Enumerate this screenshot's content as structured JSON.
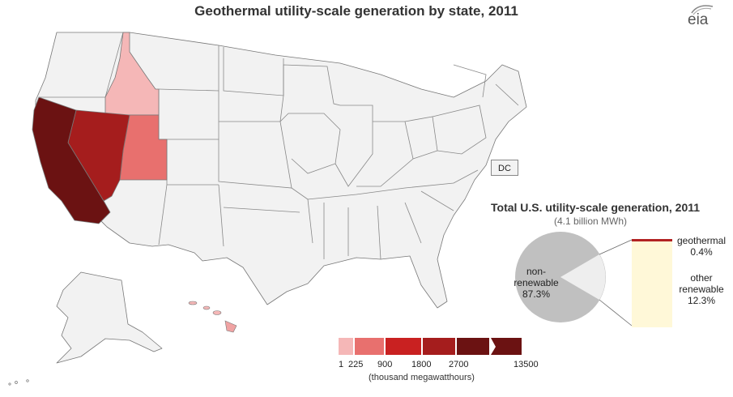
{
  "title": "Geothermal utility-scale generation by state, 2011",
  "logo": {
    "text": "eia",
    "icon": "eia-logo-icon"
  },
  "map": {
    "dc_label": "DC",
    "base_color": "#f2f2f2",
    "highlighted_states": [
      {
        "state": "California",
        "color": "#6b1212"
      },
      {
        "state": "Nevada",
        "color": "#a51d1d"
      },
      {
        "state": "Utah",
        "color": "#e8706e"
      },
      {
        "state": "Idaho",
        "color": "#f5b7b7"
      },
      {
        "state": "Hawaii",
        "color": "#f0a3a3"
      }
    ]
  },
  "legend": {
    "tick_labels": [
      "1",
      "225",
      "900",
      "1800",
      "2700",
      "13500"
    ],
    "unit": "(thousand megawatthours)",
    "colors": [
      "#f5b7b7",
      "#e8706e",
      "#c92121",
      "#a51d1d",
      "#6b1212",
      "#6b1212"
    ]
  },
  "inset": {
    "title": "Total U.S. utility-scale  generation, 2011",
    "subtitle": "(4.1 billion MWh)",
    "pie": [
      {
        "label_lines": [
          "non-",
          "renewable",
          "87.3%"
        ],
        "value": 87.3,
        "color": "#c0c0c0"
      },
      {
        "label_lines": [],
        "value": 12.7,
        "color": "#eeeeee"
      }
    ],
    "bar": [
      {
        "label_lines": [
          "geothermal",
          "0.4%"
        ],
        "value": 0.4,
        "color": "#b22222"
      },
      {
        "label_lines": [
          "other",
          "renewable",
          "12.3%"
        ],
        "value": 12.3,
        "color": "#fff8d8"
      }
    ]
  }
}
